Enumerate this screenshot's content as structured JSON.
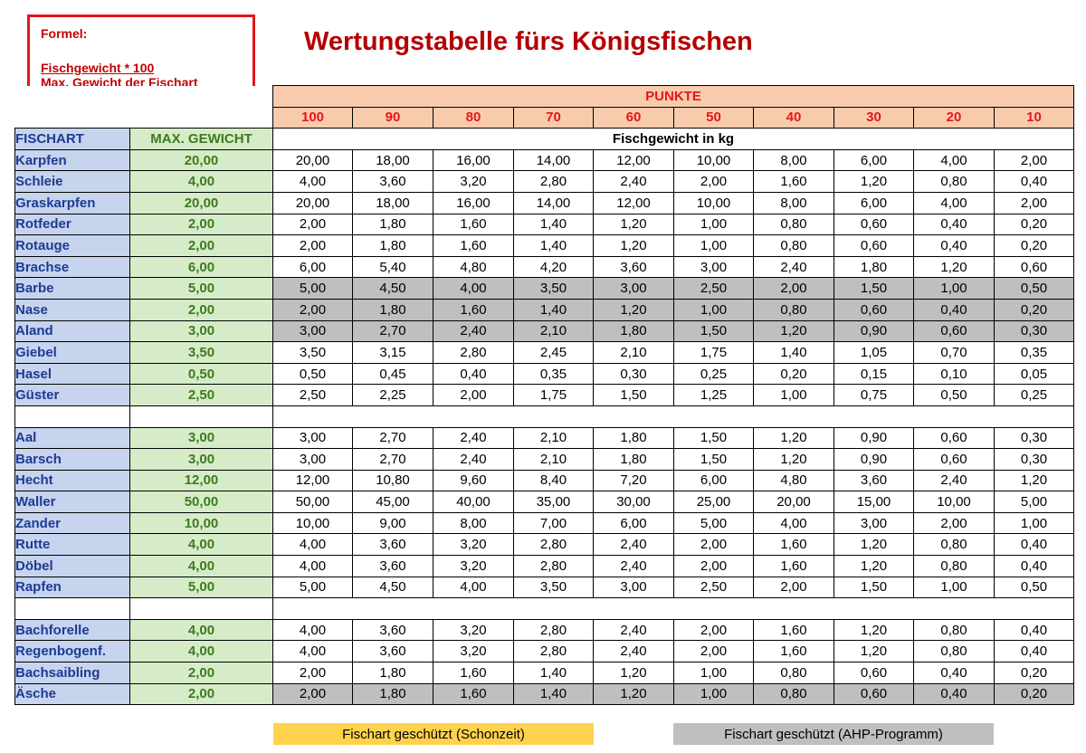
{
  "formula": {
    "label": "Formel:",
    "numerator": "Fischgewicht * 100",
    "denominator": "Max. Gewicht der Fischart"
  },
  "title": "Wertungstabelle fürs Königsfischen",
  "headers": {
    "punkte": "PUNKTE",
    "points": [
      "100",
      "90",
      "80",
      "70",
      "60",
      "50",
      "40",
      "30",
      "20",
      "10"
    ],
    "fischart": "FISCHART",
    "max_gewicht": "MAX. GEWICHT",
    "fischgewicht": "Fischgewicht in kg"
  },
  "colors": {
    "protected_closed_season": "#ffd24d",
    "protected_ahp": "#bfbfbf",
    "header_red": "#e8141b"
  },
  "rows": [
    {
      "name": "Karpfen",
      "max": "20,00",
      "gray": false,
      "values": [
        "20,00",
        "18,00",
        "16,00",
        "14,00",
        "12,00",
        "10,00",
        "8,00",
        "6,00",
        "4,00",
        "2,00"
      ]
    },
    {
      "name": "Schleie",
      "max": "4,00",
      "gray": false,
      "values": [
        "4,00",
        "3,60",
        "3,20",
        "2,80",
        "2,40",
        "2,00",
        "1,60",
        "1,20",
        "0,80",
        "0,40"
      ]
    },
    {
      "name": "Graskarpfen",
      "max": "20,00",
      "gray": false,
      "values": [
        "20,00",
        "18,00",
        "16,00",
        "14,00",
        "12,00",
        "10,00",
        "8,00",
        "6,00",
        "4,00",
        "2,00"
      ]
    },
    {
      "name": "Rotfeder",
      "max": "2,00",
      "gray": false,
      "values": [
        "2,00",
        "1,80",
        "1,60",
        "1,40",
        "1,20",
        "1,00",
        "0,80",
        "0,60",
        "0,40",
        "0,20"
      ]
    },
    {
      "name": "Rotauge",
      "max": "2,00",
      "gray": false,
      "values": [
        "2,00",
        "1,80",
        "1,60",
        "1,40",
        "1,20",
        "1,00",
        "0,80",
        "0,60",
        "0,40",
        "0,20"
      ]
    },
    {
      "name": "Brachse",
      "max": "6,00",
      "gray": false,
      "values": [
        "6,00",
        "5,40",
        "4,80",
        "4,20",
        "3,60",
        "3,00",
        "2,40",
        "1,80",
        "1,20",
        "0,60"
      ]
    },
    {
      "name": "Barbe",
      "max": "5,00",
      "gray": true,
      "values": [
        "5,00",
        "4,50",
        "4,00",
        "3,50",
        "3,00",
        "2,50",
        "2,00",
        "1,50",
        "1,00",
        "0,50"
      ]
    },
    {
      "name": "Nase",
      "max": "2,00",
      "gray": true,
      "values": [
        "2,00",
        "1,80",
        "1,60",
        "1,40",
        "1,20",
        "1,00",
        "0,80",
        "0,60",
        "0,40",
        "0,20"
      ]
    },
    {
      "name": "Aland",
      "max": "3,00",
      "gray": true,
      "values": [
        "3,00",
        "2,70",
        "2,40",
        "2,10",
        "1,80",
        "1,50",
        "1,20",
        "0,90",
        "0,60",
        "0,30"
      ]
    },
    {
      "name": "Giebel",
      "max": "3,50",
      "gray": false,
      "values": [
        "3,50",
        "3,15",
        "2,80",
        "2,45",
        "2,10",
        "1,75",
        "1,40",
        "1,05",
        "0,70",
        "0,35"
      ]
    },
    {
      "name": "Hasel",
      "max": "0,50",
      "gray": false,
      "values": [
        "0,50",
        "0,45",
        "0,40",
        "0,35",
        "0,30",
        "0,25",
        "0,20",
        "0,15",
        "0,10",
        "0,05"
      ]
    },
    {
      "name": "Güster",
      "max": "2,50",
      "gray": false,
      "values": [
        "2,50",
        "2,25",
        "2,00",
        "1,75",
        "1,50",
        "1,25",
        "1,00",
        "0,75",
        "0,50",
        "0,25"
      ]
    },
    {
      "separator": true
    },
    {
      "name": "Aal",
      "max": "3,00",
      "gray": false,
      "values": [
        "3,00",
        "2,70",
        "2,40",
        "2,10",
        "1,80",
        "1,50",
        "1,20",
        "0,90",
        "0,60",
        "0,30"
      ]
    },
    {
      "name": "Barsch",
      "max": "3,00",
      "gray": false,
      "values": [
        "3,00",
        "2,70",
        "2,40",
        "2,10",
        "1,80",
        "1,50",
        "1,20",
        "0,90",
        "0,60",
        "0,30"
      ]
    },
    {
      "name": "Hecht",
      "max": "12,00",
      "gray": false,
      "values": [
        "12,00",
        "10,80",
        "9,60",
        "8,40",
        "7,20",
        "6,00",
        "4,80",
        "3,60",
        "2,40",
        "1,20"
      ]
    },
    {
      "name": "Waller",
      "max": "50,00",
      "gray": false,
      "values": [
        "50,00",
        "45,00",
        "40,00",
        "35,00",
        "30,00",
        "25,00",
        "20,00",
        "15,00",
        "10,00",
        "5,00"
      ]
    },
    {
      "name": "Zander",
      "max": "10,00",
      "gray": false,
      "values": [
        "10,00",
        "9,00",
        "8,00",
        "7,00",
        "6,00",
        "5,00",
        "4,00",
        "3,00",
        "2,00",
        "1,00"
      ]
    },
    {
      "name": "Rutte",
      "max": "4,00",
      "gray": false,
      "values": [
        "4,00",
        "3,60",
        "3,20",
        "2,80",
        "2,40",
        "2,00",
        "1,60",
        "1,20",
        "0,80",
        "0,40"
      ]
    },
    {
      "name": "Döbel",
      "max": "4,00",
      "gray": false,
      "values": [
        "4,00",
        "3,60",
        "3,20",
        "2,80",
        "2,40",
        "2,00",
        "1,60",
        "1,20",
        "0,80",
        "0,40"
      ]
    },
    {
      "name": "Rapfen",
      "max": "5,00",
      "gray": false,
      "values": [
        "5,00",
        "4,50",
        "4,00",
        "3,50",
        "3,00",
        "2,50",
        "2,00",
        "1,50",
        "1,00",
        "0,50"
      ]
    },
    {
      "separator": true
    },
    {
      "name": "Bachforelle",
      "max": "4,00",
      "gray": false,
      "values": [
        "4,00",
        "3,60",
        "3,20",
        "2,80",
        "2,40",
        "2,00",
        "1,60",
        "1,20",
        "0,80",
        "0,40"
      ]
    },
    {
      "name": "Regenbogenf.",
      "max": "4,00",
      "gray": false,
      "values": [
        "4,00",
        "3,60",
        "3,20",
        "2,80",
        "2,40",
        "2,00",
        "1,60",
        "1,20",
        "0,80",
        "0,40"
      ]
    },
    {
      "name": "Bachsaibling",
      "max": "2,00",
      "gray": false,
      "values": [
        "2,00",
        "1,80",
        "1,60",
        "1,40",
        "1,20",
        "1,00",
        "0,80",
        "0,60",
        "0,40",
        "0,20"
      ]
    },
    {
      "name": "Äsche",
      "max": "2,00",
      "gray": true,
      "values": [
        "2,00",
        "1,80",
        "1,60",
        "1,40",
        "1,20",
        "1,00",
        "0,80",
        "0,60",
        "0,40",
        "0,20"
      ]
    }
  ],
  "legend": {
    "closed_season": "Fischart geschützt (Schonzeit)",
    "ahp": "Fischart geschützt (AHP-Programm)"
  }
}
